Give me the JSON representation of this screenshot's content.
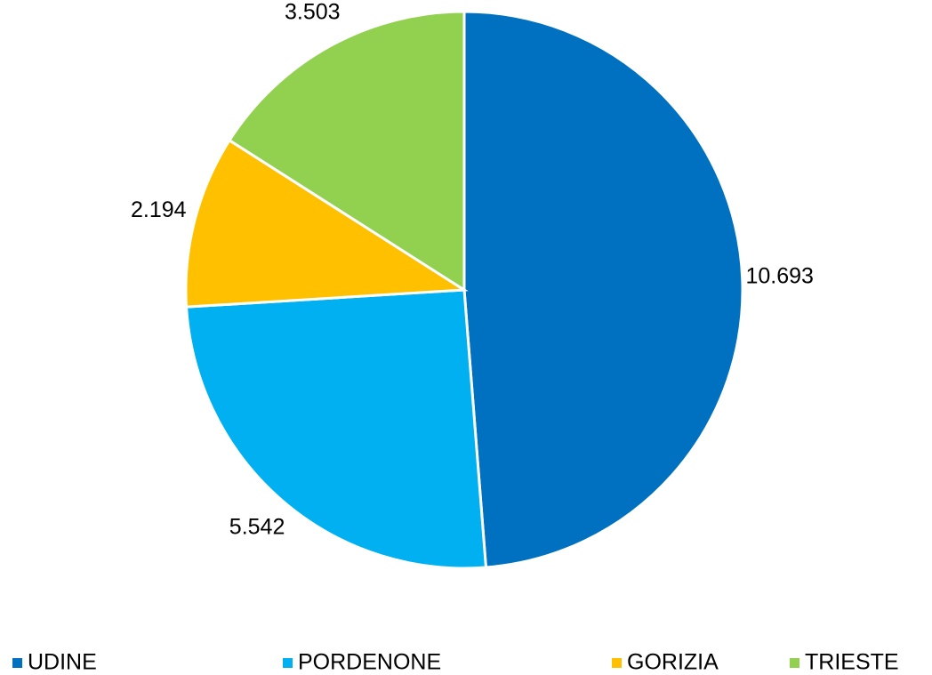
{
  "chart_data": {
    "type": "pie",
    "categories": [
      "UDINE",
      "PORDENONE",
      "GORIZIA",
      "TRIESTE"
    ],
    "values": [
      10693,
      5542,
      2194,
      3503
    ],
    "value_labels": [
      "10.693",
      "5.542",
      "2.194",
      "3.503"
    ],
    "colors": [
      "#0070c0",
      "#00b0f0",
      "#ffc000",
      "#92d050"
    ],
    "legend": "bottom"
  }
}
